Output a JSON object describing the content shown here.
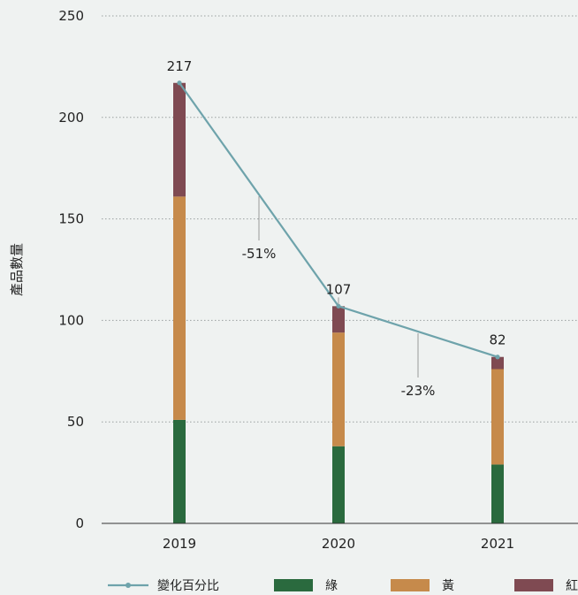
{
  "chart_data": {
    "type": "bar",
    "stacked": true,
    "categories": [
      "2019",
      "2020",
      "2021"
    ],
    "ylabel": "產品數量",
    "ylim": [
      0,
      250
    ],
    "yticks": [
      0,
      50,
      100,
      150,
      200,
      250
    ],
    "grid": true,
    "legend_position": "bottom",
    "series": [
      {
        "name": "綠",
        "values": [
          51,
          38,
          29
        ],
        "color": "#2a6a3e"
      },
      {
        "name": "黃",
        "values": [
          110,
          56,
          47
        ],
        "color": "#c68a4b"
      },
      {
        "name": "紅",
        "values": [
          56,
          13,
          6
        ],
        "color": "#7f4a52"
      }
    ],
    "totals": [
      217,
      107,
      82
    ],
    "line": {
      "name": "變化百分比",
      "values": [
        217,
        107,
        82
      ],
      "color": "#6ea3ab"
    },
    "annotations": [
      "-51%",
      "-23%"
    ]
  }
}
